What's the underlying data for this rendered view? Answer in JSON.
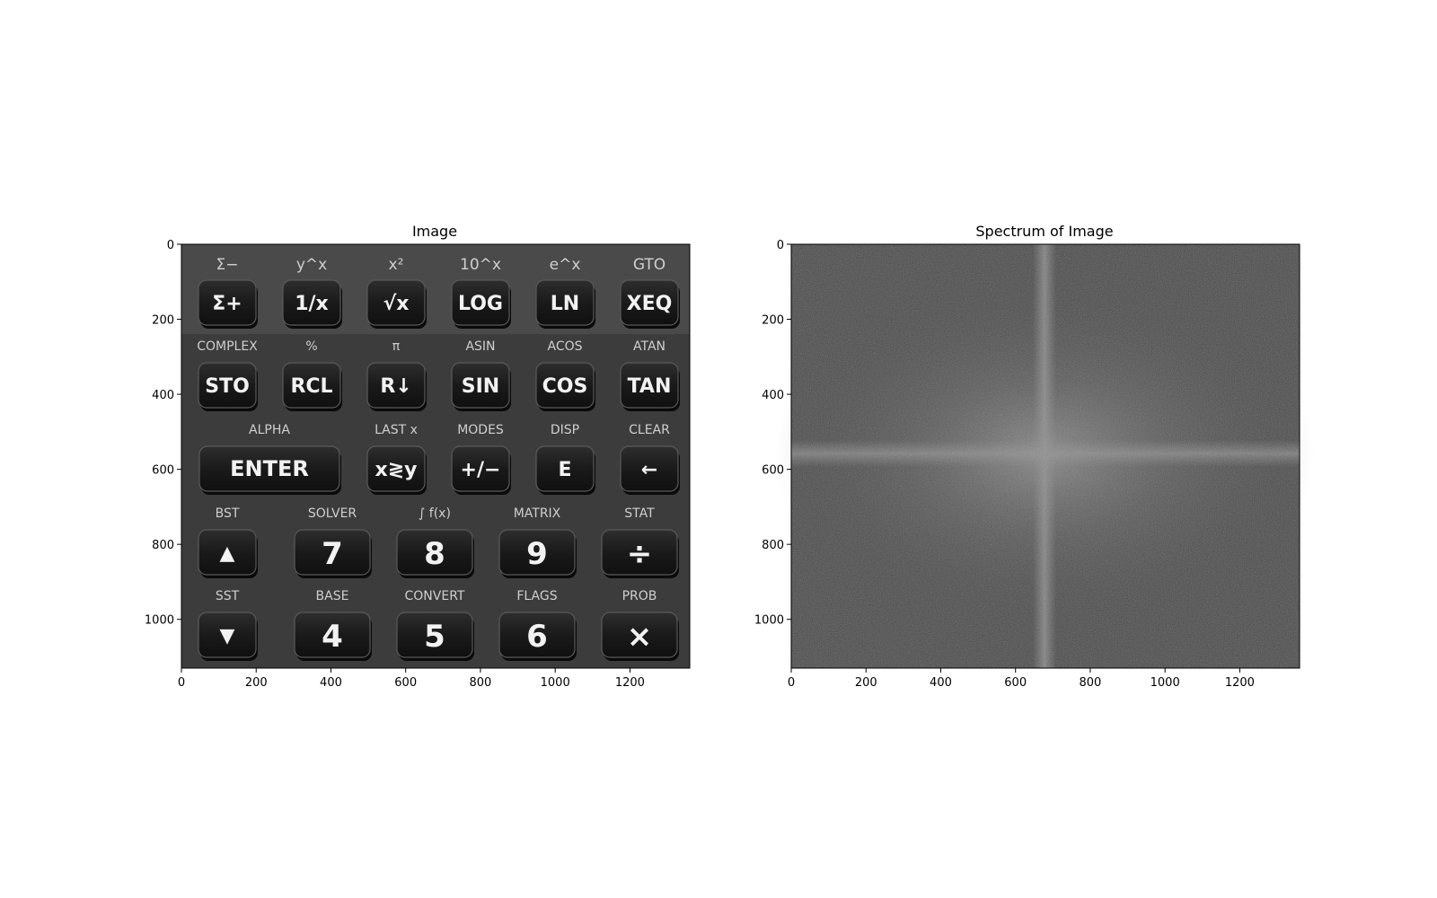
{
  "panels": {
    "left": {
      "title": "Image",
      "x_ticks": [
        "0",
        "200",
        "400",
        "600",
        "800",
        "1000",
        "1200"
      ],
      "y_ticks": [
        "0",
        "200",
        "400",
        "600",
        "800",
        "1000"
      ]
    },
    "right": {
      "title": "Spectrum of Image",
      "x_ticks": [
        "0",
        "200",
        "400",
        "600",
        "800",
        "1000",
        "1200"
      ],
      "y_ticks": [
        "0",
        "200",
        "400",
        "600",
        "800",
        "1000"
      ]
    }
  },
  "keypad": {
    "rows": [
      {
        "secondary": [
          "Σ−",
          "y^x",
          "x²",
          "10^x",
          "e^x",
          "GTO"
        ],
        "primary": [
          "Σ+",
          "1/x",
          "√x",
          "LOG",
          "LN",
          "XEQ"
        ]
      },
      {
        "secondary": [
          "COMPLEX",
          "%",
          "π",
          "ASIN",
          "ACOS",
          "ATAN"
        ],
        "primary": [
          "STO",
          "RCL",
          "R↓",
          "SIN",
          "COS",
          "TAN"
        ]
      },
      {
        "secondary": [
          "ALPHA",
          "LAST x",
          "MODES",
          "DISP",
          "CLEAR"
        ],
        "primary": [
          "ENTER",
          "x≷y",
          "+/−",
          "E",
          "←"
        ]
      },
      {
        "secondary": [
          "BST",
          "SOLVER",
          "∫ f(x)",
          "MATRIX",
          "STAT"
        ],
        "primary": [
          "▲",
          "7",
          "8",
          "9",
          "÷"
        ]
      },
      {
        "secondary": [
          "SST",
          "BASE",
          "CONVERT",
          "FLAGS",
          "PROB"
        ],
        "primary": [
          "▼",
          "4",
          "5",
          "6",
          "×"
        ]
      }
    ]
  },
  "colors": {
    "keypad_bg": "#3a3a3a",
    "key_face": "#1c1c1c",
    "spectrum_bg": "#4a4a4a"
  }
}
